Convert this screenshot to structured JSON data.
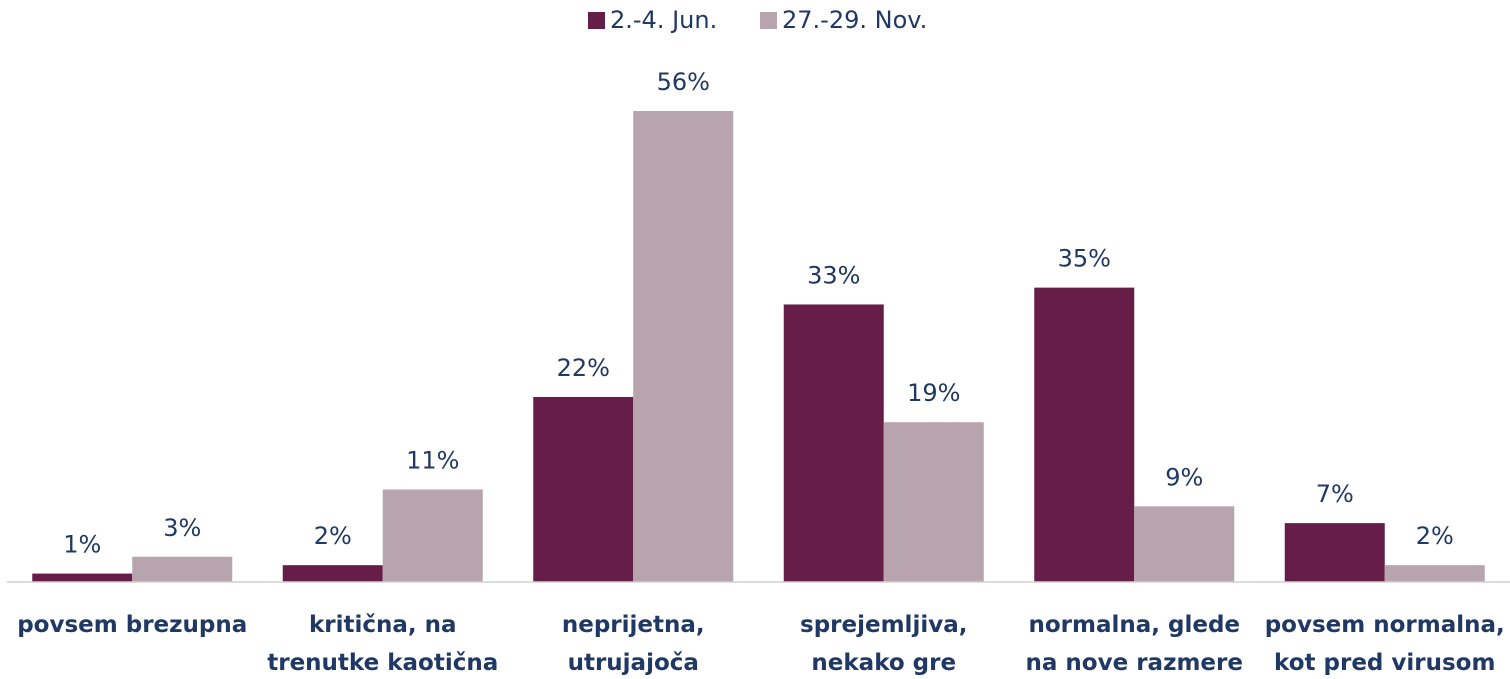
{
  "chart_data": {
    "type": "bar",
    "categories": [
      "povsem brezupna",
      "kritična, na trenutke kaotična",
      "neprijetna, utrujajoča",
      "sprejemljiva, nekako gre",
      "normalna, glede na nove razmere",
      "povsem normalna, kot pred virusom"
    ],
    "series": [
      {
        "name": "2.-4. Jun.",
        "color": "#661e48",
        "values": [
          1,
          2,
          22,
          33,
          35,
          7
        ],
        "value_labels": [
          "1%",
          "2%",
          "22%",
          "33%",
          "35%",
          "7%"
        ]
      },
      {
        "name": "27.-29. Nov.",
        "color": "#b8a4ac",
        "values": [
          3,
          11,
          56,
          19,
          9,
          2
        ],
        "value_labels": [
          "3%",
          "11%",
          "56%",
          "19%",
          "9%",
          "2%"
        ]
      }
    ],
    "legend": "top"
  }
}
